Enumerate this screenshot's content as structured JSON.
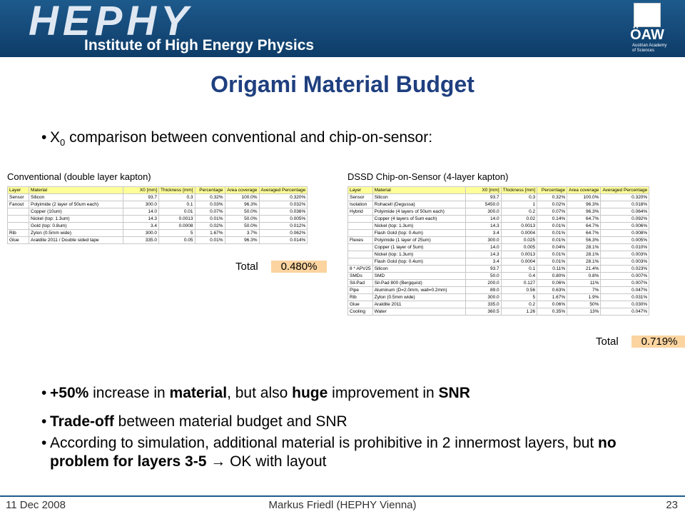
{
  "header": {
    "logo": "HEPHY",
    "institute": "Institute of High Energy Physics",
    "academy": "ÖAW",
    "academy_lines": [
      "Austrian Academy",
      "of Sciences"
    ]
  },
  "title": "Origami Material Budget",
  "bullets_top": [
    [
      {
        "text": "X"
      },
      {
        "text": "0",
        "sub": true
      },
      {
        "text": " comparison between conventional and chip-on-sensor:"
      }
    ]
  ],
  "tables": [
    {
      "title": "Conventional (double layer kapton)",
      "columns": [
        "Layer",
        "Material",
        "X0 [mm]",
        "Thickness [mm]",
        "Percentage",
        "Area coverage",
        "Averaged Percentage"
      ],
      "rows": [
        [
          "Sensor",
          "Silicon",
          "93.7",
          "0.3",
          "0.32%",
          "100.0%",
          "0.320%"
        ],
        [
          "Fanout",
          "Polyimide (2 layer of 50um each)",
          "300.0",
          "0.1",
          "0.03%",
          "96.3%",
          "0.032%"
        ],
        [
          null,
          "Copper (10um)",
          "14.0",
          "0.01",
          "0.07%",
          "50.0%",
          "0.036%"
        ],
        [
          null,
          "Nickel (top: 1.3um)",
          "14.3",
          "0.0013",
          "0.01%",
          "50.0%",
          "0.005%"
        ],
        [
          null,
          "Gold (top: 0.8um)",
          "3.4",
          "0.0008",
          "0.02%",
          "50.0%",
          "0.012%"
        ],
        [
          "Rib",
          "Zylon (0.5mm wide)",
          "300.0",
          "5",
          "1.67%",
          "3.7%",
          "0.062%"
        ],
        [
          "Glue",
          "Araldite 2011 / Double sided tape",
          "335.0",
          "0.05",
          "0.01%",
          "96.3%",
          "0.014%"
        ]
      ],
      "total_label": "Total",
      "total": "0.480%"
    },
    {
      "title": "DSSD Chip-on-Sensor (4-layer kapton)",
      "columns": [
        "Layer",
        "Material",
        "X0 [mm]",
        "Thickness [mm]",
        "Percentage",
        "Area coverage",
        "Averaged Percentage"
      ],
      "rows": [
        [
          "Sensor",
          "Silicon",
          "93.7",
          "0.3",
          "0.32%",
          "100.0%",
          "0.320%"
        ],
        [
          "Isolation",
          "Rohacell (Degussa)",
          "5450.0",
          "1",
          "0.02%",
          "96.3%",
          "0.018%"
        ],
        [
          "Hybrid",
          "Polyimide (4 layers of 50um each)",
          "300.0",
          "0.2",
          "0.07%",
          "96.3%",
          "0.064%"
        ],
        [
          null,
          "Copper (4 layers of 5um each)",
          "14.0",
          "0.02",
          "0.14%",
          "64.7%",
          "0.092%"
        ],
        [
          null,
          "Nickel (top: 1.3um)",
          "14.3",
          "0.0013",
          "0.01%",
          "64.7%",
          "0.006%"
        ],
        [
          null,
          "Flash Gold (top: 0.4um)",
          "3.4",
          "0.0004",
          "0.01%",
          "64.7%",
          "0.008%"
        ],
        [
          "Flexes",
          "Polyimide (1 layer of 25um)",
          "300.0",
          "0.025",
          "0.01%",
          "56.3%",
          "0.005%"
        ],
        [
          null,
          "Copper (1 layer of 5um)",
          "14.0",
          "0.005",
          "0.04%",
          "28.1%",
          "0.010%"
        ],
        [
          null,
          "Nickel (top: 1.3um)",
          "14.3",
          "0.0013",
          "0.01%",
          "28.1%",
          "0.003%"
        ],
        [
          null,
          "Flash Gold (top: 0.4um)",
          "3.4",
          "0.0004",
          "0.01%",
          "28.1%",
          "0.003%"
        ],
        [
          "8 * APV25",
          "Silicon",
          "93.7",
          "0.1",
          "0.11%",
          "21.4%",
          "0.023%"
        ],
        [
          "SMDs",
          "SMD",
          "50.0",
          "0.4",
          "0.80%",
          "0.8%",
          "0.007%"
        ],
        [
          "Sil-Pad",
          "Sil-Pad 800 (Bergquist)",
          "200.0",
          "0.127",
          "0.06%",
          "11%",
          "0.007%"
        ],
        [
          "Pipe",
          "Aluminum (D=2.0mm, wall=0.2mm)",
          "89.0",
          "0.56",
          "0.63%",
          "7%",
          "0.047%"
        ],
        [
          "Rib",
          "Zylon (0.5mm wide)",
          "300.0",
          "5",
          "1.67%",
          "1.9%",
          "0.031%"
        ],
        [
          "Glue",
          "Araldite 2011",
          "335.0",
          "0.2",
          "0.06%",
          "50%",
          "0.030%"
        ],
        [
          "Cooling",
          "Water",
          "360.5",
          "1.26",
          "0.35%",
          "13%",
          "0.047%"
        ]
      ],
      "total_label": "Total",
      "total": "0.719%"
    }
  ],
  "bullets_bottom": [
    [
      {
        "text": "+50%",
        "bold": true
      },
      {
        "text": " increase in "
      },
      {
        "text": "material",
        "bold": true
      },
      {
        "text": ", but also "
      },
      {
        "text": "huge",
        "bold": true
      },
      {
        "text": " improvement in "
      },
      {
        "text": "SNR",
        "bold": true
      }
    ],
    [
      {
        "text": "Trade-off",
        "bold": true
      },
      {
        "text": " between material budget and SNR"
      }
    ],
    [
      {
        "text": "According to simulation, additional material is prohibitive in 2 innermost layers, but "
      },
      {
        "text": "no problem for layers 3-5",
        "bold": true
      },
      {
        "text": " → OK with layout"
      }
    ]
  ],
  "footer": {
    "date": "11 Dec 2008",
    "author": "Markus Friedl (HEPHY Vienna)",
    "page": "23"
  }
}
